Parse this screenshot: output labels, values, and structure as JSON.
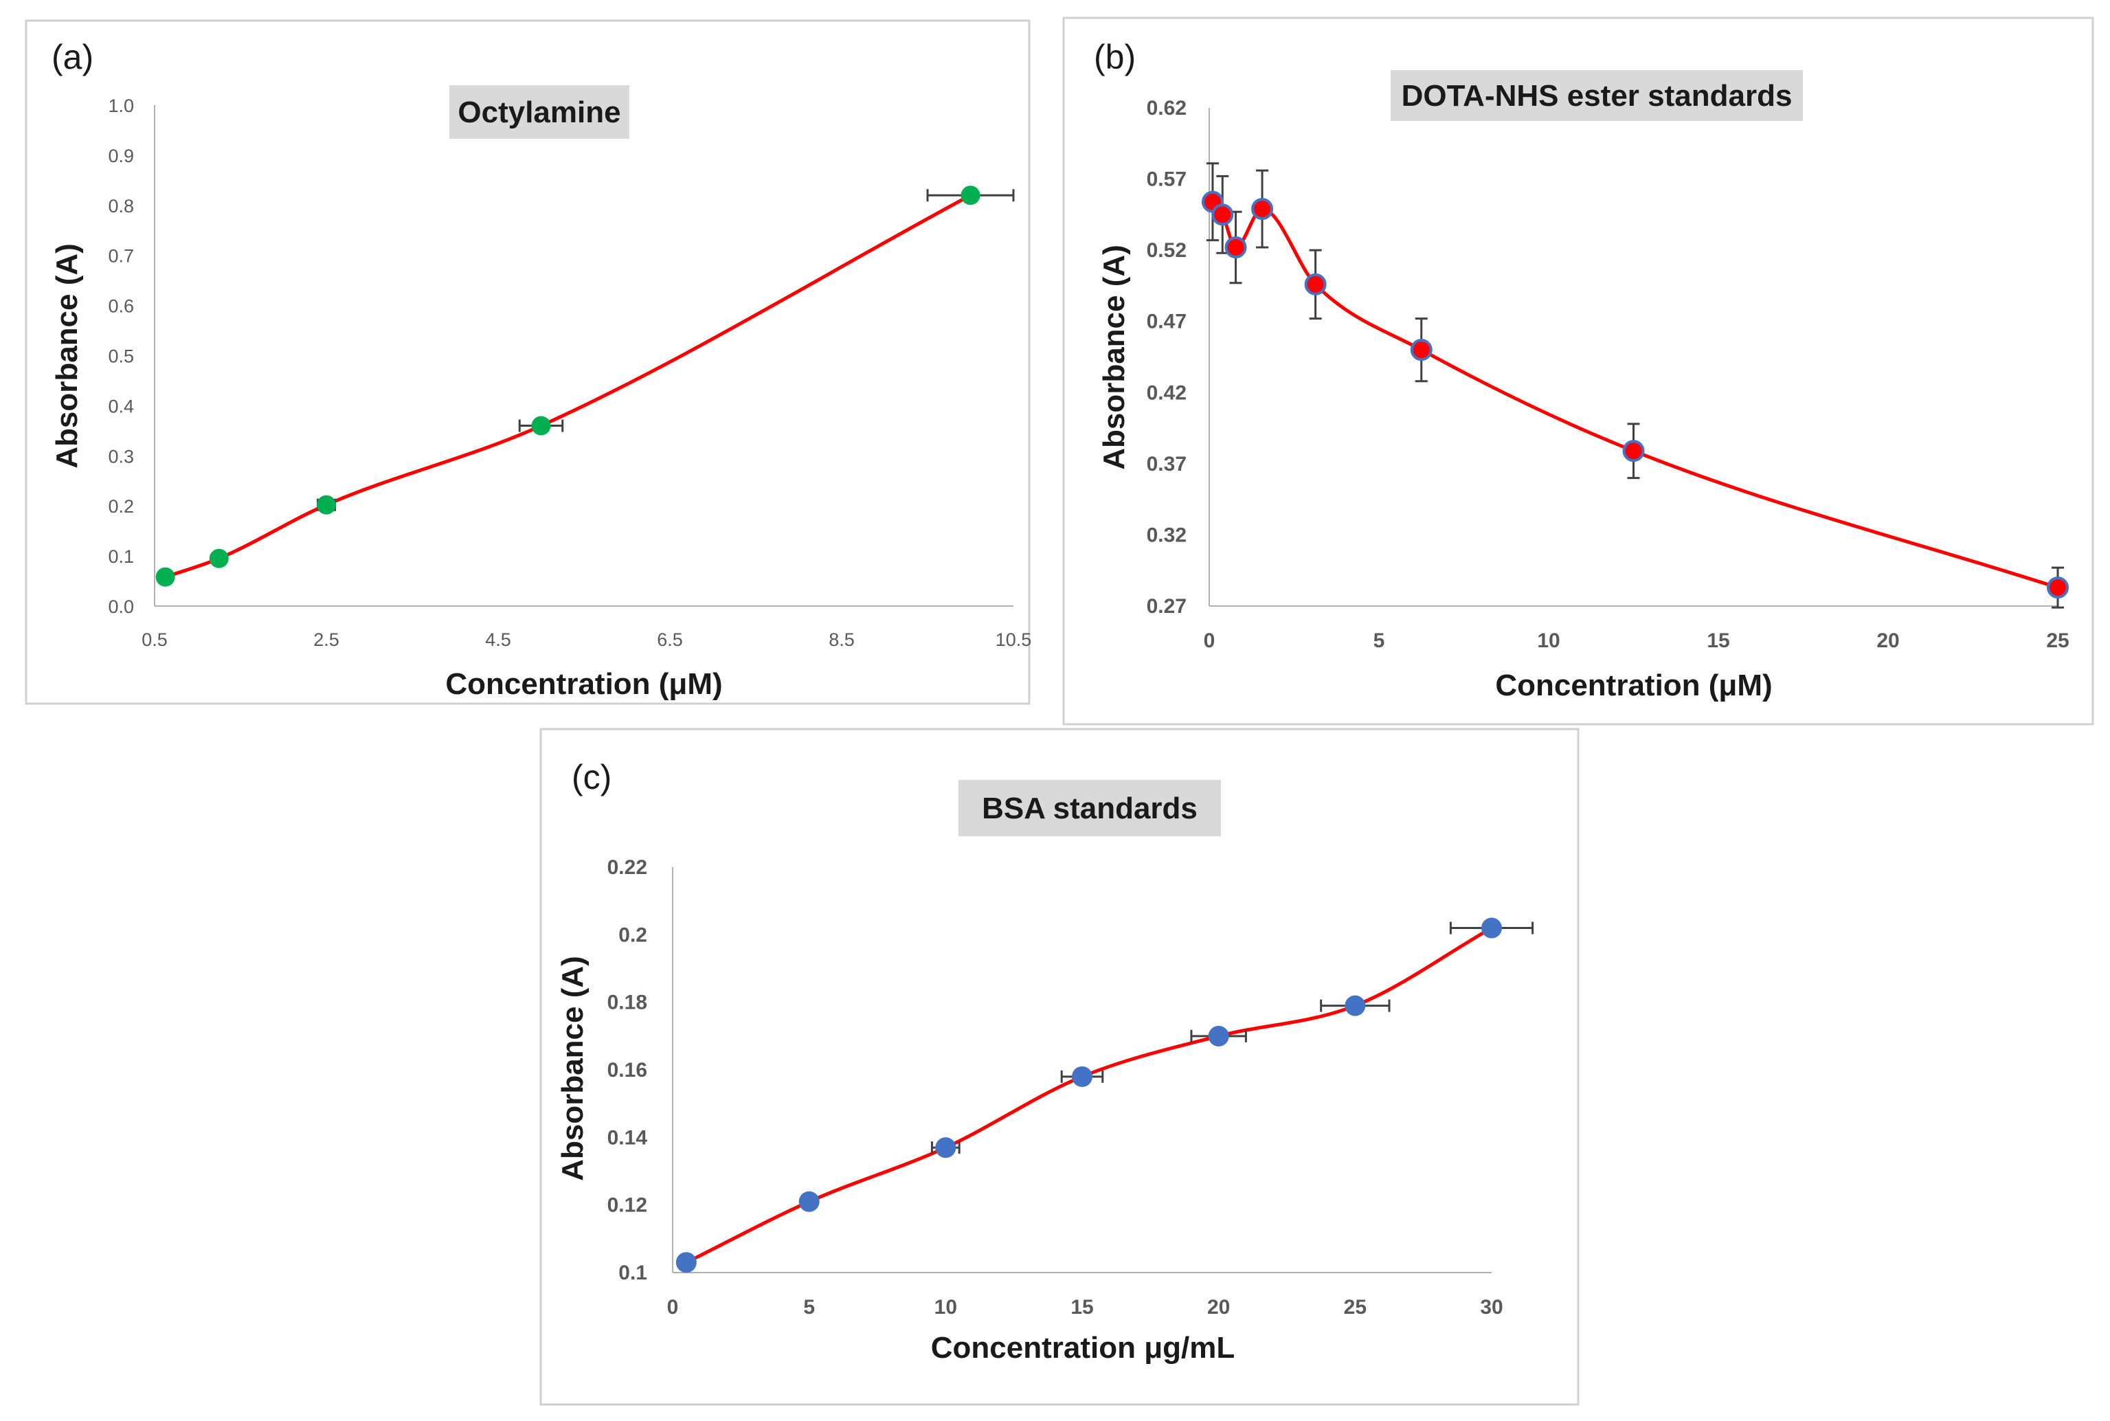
{
  "chart_data": [
    {
      "id": "a",
      "type": "scatter",
      "panel_label": "(a)",
      "title": "Octylamine",
      "xlabel": "Concentration (μM)",
      "ylabel": "Absorbance (A)",
      "xlim": [
        0.5,
        10.5
      ],
      "ylim": [
        0.0,
        1.0
      ],
      "xticks": [
        "0.5",
        "2.5",
        "4.5",
        "6.5",
        "8.5",
        "10.5"
      ],
      "xtick_values": [
        0.5,
        2.5,
        4.5,
        6.5,
        8.5,
        10.5
      ],
      "yticks": [
        "0.0",
        "0.1",
        "0.2",
        "0.3",
        "0.4",
        "0.5",
        "0.6",
        "0.7",
        "0.8",
        "0.9",
        "1.0"
      ],
      "ytick_values": [
        0.0,
        0.1,
        0.2,
        0.3,
        0.4,
        0.5,
        0.6,
        0.7,
        0.8,
        0.9,
        1.0
      ],
      "x": [
        0.625,
        1.25,
        2.5,
        5.0,
        10.0
      ],
      "y": [
        0.058,
        0.095,
        0.202,
        0.36,
        0.82
      ],
      "x_err": [
        0.0,
        0.0,
        0.1,
        0.25,
        0.5
      ],
      "y_err": [
        0,
        0,
        0,
        0,
        0
      ],
      "marker_color": "#00b050",
      "curve_color": "#ff0000"
    },
    {
      "id": "b",
      "type": "scatter",
      "panel_label": "(b)",
      "title": "DOTA-NHS ester standards",
      "xlabel": "Concentration (μM)",
      "ylabel": "Absorbance (A)",
      "xlim": [
        0,
        25
      ],
      "ylim": [
        0.27,
        0.62
      ],
      "xticks": [
        "0",
        "5",
        "10",
        "15",
        "20",
        "25"
      ],
      "xtick_values": [
        0,
        5,
        10,
        15,
        20,
        25
      ],
      "yticks": [
        "0.27",
        "0.32",
        "0.37",
        "0.42",
        "0.47",
        "0.52",
        "0.57",
        "0.62"
      ],
      "ytick_values": [
        0.27,
        0.32,
        0.37,
        0.42,
        0.47,
        0.52,
        0.57,
        0.62
      ],
      "x": [
        0.1,
        0.39,
        0.78,
        1.56,
        3.13,
        6.25,
        12.5,
        25.0
      ],
      "y": [
        0.554,
        0.545,
        0.522,
        0.549,
        0.496,
        0.45,
        0.379,
        0.283
      ],
      "x_err": [
        0,
        0,
        0,
        0,
        0,
        0,
        0,
        0
      ],
      "y_err": [
        0.027,
        0.027,
        0.025,
        0.027,
        0.024,
        0.022,
        0.019,
        0.014
      ],
      "marker_color": "#ff0000",
      "marker_edge": "#4472c4",
      "curve_color": "#ff0000"
    },
    {
      "id": "c",
      "type": "scatter",
      "panel_label": "(c)",
      "title": "BSA standards",
      "xlabel": "Concentration μg/mL",
      "ylabel": "Absorbance (A)",
      "xlim": [
        0,
        30
      ],
      "ylim": [
        0.1,
        0.22
      ],
      "xticks": [
        "0",
        "5",
        "10",
        "15",
        "20",
        "25",
        "30"
      ],
      "xtick_values": [
        0,
        5,
        10,
        15,
        20,
        25,
        30
      ],
      "yticks": [
        "0.1",
        "0.12",
        "0.14",
        "0.16",
        "0.18",
        "0.2",
        "0.22"
      ],
      "ytick_values": [
        0.1,
        0.12,
        0.14,
        0.16,
        0.18,
        0.2,
        0.22
      ],
      "x": [
        0.5,
        5,
        10,
        15,
        20,
        25,
        30
      ],
      "y": [
        0.103,
        0.121,
        0.137,
        0.158,
        0.17,
        0.179,
        0.202
      ],
      "x_err": [
        0,
        0,
        0.5,
        0.75,
        1.0,
        1.25,
        1.5
      ],
      "y_err": [
        0,
        0,
        0,
        0,
        0,
        0,
        0
      ],
      "marker_color": "#4472c4",
      "curve_color": "#ff0000"
    }
  ]
}
